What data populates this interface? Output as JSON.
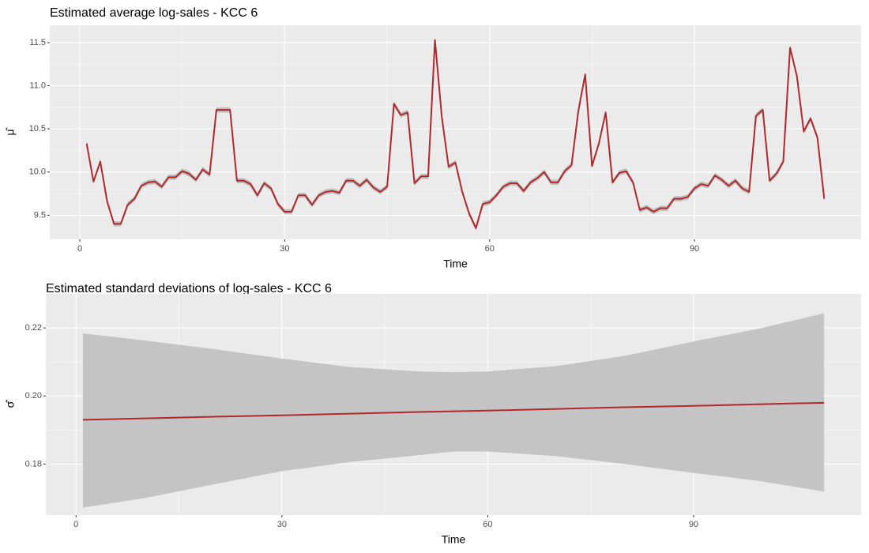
{
  "chart_data": [
    {
      "type": "line",
      "title": "Estimated average log-sales - KCC 6",
      "xlabel": "Time",
      "ylabel": "μ̂",
      "x": [
        1,
        2,
        3,
        4,
        5,
        6,
        7,
        8,
        9,
        10,
        11,
        12,
        13,
        14,
        15,
        16,
        17,
        18,
        19,
        20,
        21,
        22,
        23,
        24,
        25,
        26,
        27,
        28,
        29,
        30,
        31,
        32,
        33,
        34,
        35,
        36,
        37,
        38,
        39,
        40,
        41,
        42,
        43,
        44,
        45,
        46,
        47,
        48,
        49,
        50,
        51,
        52,
        53,
        54,
        55,
        56,
        57,
        58,
        59,
        60,
        61,
        62,
        63,
        64,
        65,
        66,
        67,
        68,
        69,
        70,
        71,
        72,
        73,
        74,
        75,
        76,
        77,
        78,
        79,
        80,
        81,
        82,
        83,
        84,
        85,
        86,
        87,
        88,
        89,
        90,
        91,
        92,
        93,
        94,
        95,
        96,
        97,
        98,
        99,
        100,
        101,
        102,
        103,
        104,
        105,
        106,
        107,
        108,
        109
      ],
      "series": [
        {
          "color": "#b2282a",
          "values": [
            10.33,
            9.89,
            10.12,
            9.66,
            9.4,
            9.4,
            9.62,
            9.69,
            9.84,
            9.88,
            9.89,
            9.83,
            9.94,
            9.94,
            10.01,
            9.98,
            9.91,
            10.03,
            9.97,
            10.72,
            10.72,
            10.72,
            9.9,
            9.9,
            9.86,
            9.73,
            9.87,
            9.81,
            9.63,
            9.54,
            9.54,
            9.73,
            9.73,
            9.62,
            9.73,
            9.77,
            9.78,
            9.76,
            9.9,
            9.9,
            9.84,
            9.91,
            9.82,
            9.77,
            9.83,
            10.79,
            10.66,
            10.69,
            9.87,
            9.95,
            9.95,
            11.53,
            10.64,
            10.06,
            10.11,
            9.77,
            9.52,
            9.35,
            9.63,
            9.65,
            9.73,
            9.83,
            9.87,
            9.87,
            9.78,
            9.88,
            9.93,
            10.0,
            9.88,
            9.88,
            10.01,
            10.08,
            10.71,
            11.13,
            10.07,
            10.33,
            10.69,
            9.88,
            9.99,
            10.01,
            9.88,
            9.56,
            9.59,
            9.54,
            9.58,
            9.58,
            9.69,
            9.69,
            9.71,
            9.81,
            9.86,
            9.84,
            9.96,
            9.91,
            9.84,
            9.9,
            9.81,
            9.77,
            10.65,
            10.72,
            9.9,
            9.98,
            10.12,
            11.44,
            11.11,
            10.47,
            10.62,
            10.4,
            9.69
          ]
        }
      ],
      "ribbon": {
        "halfwidth": 0.03,
        "color": "#bebebe"
      },
      "xlim": [
        -4.4,
        114.4
      ],
      "xticks": [
        0,
        30,
        60,
        90
      ],
      "ylim": [
        9.22,
        11.7
      ],
      "yticks": [
        9.5,
        {
          "value": 10.0,
          "label": "10.0"
        },
        10.5,
        {
          "value": 11.0,
          "label": "11.0"
        },
        11.5
      ],
      "grid": true
    },
    {
      "type": "line",
      "title": "Estimated standard deviations of log-sales - KCC 6",
      "xlabel": "Time",
      "ylabel": "σ̂",
      "x": [
        1,
        10,
        20,
        30,
        40,
        50,
        55,
        60,
        70,
        80,
        90,
        100,
        109
      ],
      "series": [
        {
          "color": "#b2282a",
          "values": [
            0.193,
            0.1934,
            0.1939,
            0.1943,
            0.1948,
            0.1953,
            0.1955,
            0.1957,
            0.1962,
            0.1967,
            0.1971,
            0.1976,
            0.198
          ]
        }
      ],
      "ribbon": {
        "color": "#c4c4c4",
        "lower": [
          0.1672,
          0.17,
          0.174,
          0.1779,
          0.1806,
          0.1826,
          0.1837,
          0.1837,
          0.1823,
          0.18,
          0.1774,
          0.1749,
          0.1719
        ],
        "upper": [
          0.2184,
          0.2163,
          0.2138,
          0.211,
          0.2085,
          0.2072,
          0.207,
          0.2072,
          0.2088,
          0.2118,
          0.216,
          0.22,
          0.2243
        ]
      },
      "xlim": [
        -4.4,
        114.4
      ],
      "xticks": [
        0,
        30,
        60,
        90
      ],
      "ylim": [
        0.165,
        0.23
      ],
      "yticks": [
        0.18,
        {
          "value": 0.2,
          "label": "0.20"
        },
        0.22
      ],
      "grid": true
    }
  ]
}
